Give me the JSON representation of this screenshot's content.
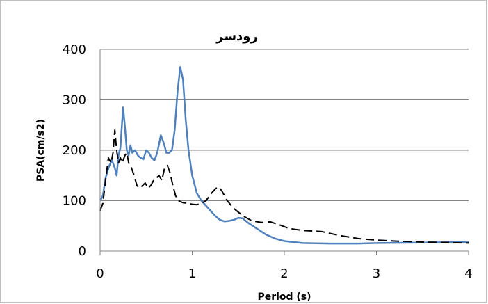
{
  "chart_data": {
    "type": "line",
    "title": "رودسر",
    "xlabel": "Period (s)",
    "ylabel": "PSA(cm/s2)",
    "xlim": [
      0,
      4
    ],
    "ylim": [
      0,
      400
    ],
    "x_ticks": [
      "0",
      "1",
      "2",
      "3",
      "4"
    ],
    "y_ticks": [
      "0",
      "100",
      "200",
      "300",
      "400"
    ],
    "grid": "horizontal",
    "legend": "none",
    "series": [
      {
        "style": "solid",
        "color": "#4f81bd",
        "points": [
          [
            0.0,
            100
          ],
          [
            0.03,
            110
          ],
          [
            0.06,
            145
          ],
          [
            0.1,
            170
          ],
          [
            0.13,
            180
          ],
          [
            0.16,
            165
          ],
          [
            0.18,
            150
          ],
          [
            0.2,
            190
          ],
          [
            0.22,
            205
          ],
          [
            0.25,
            285
          ],
          [
            0.27,
            245
          ],
          [
            0.29,
            200
          ],
          [
            0.31,
            190
          ],
          [
            0.33,
            210
          ],
          [
            0.35,
            195
          ],
          [
            0.38,
            200
          ],
          [
            0.41,
            190
          ],
          [
            0.44,
            185
          ],
          [
            0.47,
            182
          ],
          [
            0.5,
            200
          ],
          [
            0.53,
            195
          ],
          [
            0.56,
            185
          ],
          [
            0.59,
            180
          ],
          [
            0.62,
            195
          ],
          [
            0.66,
            230
          ],
          [
            0.69,
            215
          ],
          [
            0.72,
            195
          ],
          [
            0.75,
            195
          ],
          [
            0.78,
            200
          ],
          [
            0.81,
            240
          ],
          [
            0.84,
            315
          ],
          [
            0.87,
            365
          ],
          [
            0.9,
            340
          ],
          [
            0.93,
            260
          ],
          [
            0.96,
            200
          ],
          [
            1.0,
            150
          ],
          [
            1.05,
            115
          ],
          [
            1.1,
            100
          ],
          [
            1.15,
            90
          ],
          [
            1.2,
            80
          ],
          [
            1.25,
            70
          ],
          [
            1.3,
            62
          ],
          [
            1.35,
            59
          ],
          [
            1.4,
            60
          ],
          [
            1.45,
            62
          ],
          [
            1.5,
            66
          ],
          [
            1.55,
            65
          ],
          [
            1.6,
            57
          ],
          [
            1.7,
            45
          ],
          [
            1.8,
            33
          ],
          [
            1.9,
            25
          ],
          [
            2.0,
            20
          ],
          [
            2.2,
            16
          ],
          [
            2.5,
            15
          ],
          [
            2.8,
            15
          ],
          [
            3.0,
            16
          ],
          [
            3.5,
            17
          ],
          [
            4.0,
            18
          ]
        ]
      },
      {
        "style": "dashed",
        "color": "#000000",
        "points": [
          [
            0.0,
            80
          ],
          [
            0.03,
            95
          ],
          [
            0.06,
            140
          ],
          [
            0.09,
            185
          ],
          [
            0.12,
            175
          ],
          [
            0.14,
            195
          ],
          [
            0.16,
            240
          ],
          [
            0.18,
            200
          ],
          [
            0.2,
            175
          ],
          [
            0.22,
            185
          ],
          [
            0.24,
            175
          ],
          [
            0.27,
            190
          ],
          [
            0.29,
            195
          ],
          [
            0.31,
            175
          ],
          [
            0.34,
            165
          ],
          [
            0.37,
            150
          ],
          [
            0.4,
            130
          ],
          [
            0.43,
            125
          ],
          [
            0.46,
            130
          ],
          [
            0.49,
            135
          ],
          [
            0.52,
            125
          ],
          [
            0.55,
            130
          ],
          [
            0.58,
            140
          ],
          [
            0.61,
            145
          ],
          [
            0.64,
            150
          ],
          [
            0.67,
            140
          ],
          [
            0.7,
            165
          ],
          [
            0.73,
            170
          ],
          [
            0.76,
            155
          ],
          [
            0.79,
            130
          ],
          [
            0.82,
            110
          ],
          [
            0.85,
            100
          ],
          [
            0.9,
            96
          ],
          [
            0.95,
            95
          ],
          [
            1.0,
            93
          ],
          [
            1.05,
            92
          ],
          [
            1.1,
            95
          ],
          [
            1.15,
            100
          ],
          [
            1.2,
            113
          ],
          [
            1.25,
            123
          ],
          [
            1.28,
            128
          ],
          [
            1.32,
            120
          ],
          [
            1.38,
            100
          ],
          [
            1.45,
            85
          ],
          [
            1.55,
            70
          ],
          [
            1.65,
            60
          ],
          [
            1.75,
            57
          ],
          [
            1.85,
            58
          ],
          [
            1.95,
            52
          ],
          [
            2.05,
            45
          ],
          [
            2.2,
            41
          ],
          [
            2.4,
            39
          ],
          [
            2.6,
            31
          ],
          [
            2.8,
            25
          ],
          [
            3.0,
            22
          ],
          [
            3.2,
            20
          ],
          [
            3.5,
            18
          ],
          [
            3.8,
            17
          ],
          [
            4.0,
            16
          ]
        ]
      }
    ]
  }
}
